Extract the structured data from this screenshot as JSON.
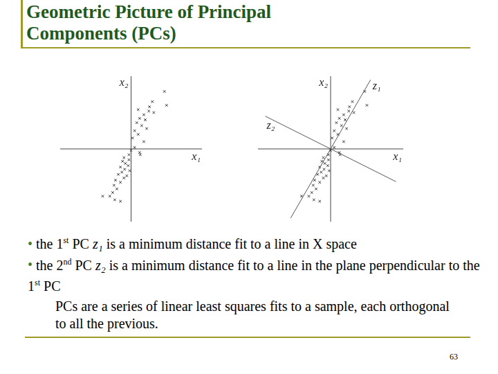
{
  "slide": {
    "title": [
      "Geometric Picture of Principal",
      "Components (PCs)"
    ],
    "bullets": [
      [
        {
          "text": "the 1"
        },
        {
          "text": "st",
          "style": "sup"
        },
        {
          "text": " PC "
        },
        {
          "text": "z₁",
          "style": "math"
        },
        {
          "text": " is a minimum distance fit to a line in  X  space"
        }
      ],
      [
        {
          "text": "the 2"
        },
        {
          "text": "nd",
          "style": "sup"
        },
        {
          "text": " PC "
        },
        {
          "text": "z₂",
          "style": "math"
        },
        {
          "text": " is a minimum distance fit to a line in the plane perpendicular to the 1"
        },
        {
          "text": "st",
          "style": "sup"
        },
        {
          "text": " PC"
        }
      ]
    ],
    "note": "PCs are a series of linear least squares fits to a sample, each orthogonal to all the previous.",
    "page": 63
  },
  "chart_data": [
    {
      "type": "scatter",
      "xlabel": "x₁",
      "ylabel": "x₂",
      "x": [
        4.7,
        5.0,
        3.0,
        2.5,
        1.8,
        1.2,
        2.0,
        0.8,
        1.5,
        2.6,
        0.5,
        1.0,
        0.2,
        1.8,
        0.5,
        1.2,
        -0.3,
        -1.0,
        -1.2,
        -0.8,
        -0.4,
        -1.5,
        -0.9,
        -0.2,
        -1.3,
        -1.8,
        -0.6,
        -1.0,
        -2.2,
        -1.5,
        -2.4,
        -2.0,
        -2.6,
        -3.0,
        -4.0,
        -2.3,
        -1.5,
        3.2,
        1.0,
        2.2,
        0.0,
        -0.3,
        1.3
      ],
      "values": [
        7.9,
        6.0,
        6.5,
        5.2,
        4.7,
        4.2,
        4.0,
        3.6,
        3.2,
        5.8,
        2.5,
        2.0,
        1.5,
        1.0,
        0.2,
        -0.5,
        -0.8,
        -1.2,
        -1.7,
        -2.0,
        -2.3,
        -2.5,
        -2.8,
        -3.0,
        -3.2,
        -3.5,
        -3.7,
        -4.0,
        -4.3,
        -4.6,
        -5.0,
        -5.5,
        -6.0,
        -6.5,
        -6.5,
        -7.0,
        -7.2,
        5.0,
        5.4,
        2.8,
        -0.2,
        -1.5,
        -0.8
      ],
      "xlim": [
        -10,
        10
      ],
      "ylim": [
        -10,
        10
      ],
      "tick_labels": false,
      "grid": false,
      "marker": "x",
      "color": "#333333"
    },
    {
      "type": "scatter",
      "xlabel": "x₁",
      "ylabel": "x₂",
      "x": [
        4.7,
        5.0,
        3.0,
        2.5,
        1.8,
        1.2,
        2.0,
        0.8,
        1.5,
        2.6,
        0.5,
        1.0,
        0.2,
        1.8,
        0.5,
        1.2,
        -0.3,
        -1.0,
        -1.2,
        -0.8,
        -0.4,
        -1.5,
        -0.9,
        -0.2,
        -1.3,
        -1.8,
        -0.6,
        -1.0,
        -2.2,
        -1.5,
        -2.4,
        -2.0,
        -2.6,
        -3.0,
        -4.0,
        -2.3,
        -1.5,
        3.2,
        1.0,
        2.2,
        0.0,
        -0.3,
        1.3
      ],
      "values": [
        7.9,
        6.0,
        6.5,
        5.2,
        4.7,
        4.2,
        4.0,
        3.6,
        3.2,
        5.8,
        2.5,
        2.0,
        1.5,
        1.0,
        0.2,
        -0.5,
        -0.8,
        -1.2,
        -1.7,
        -2.0,
        -2.3,
        -2.5,
        -2.8,
        -3.0,
        -3.2,
        -3.5,
        -3.7,
        -4.0,
        -4.3,
        -4.6,
        -5.0,
        -5.5,
        -6.0,
        -6.5,
        -6.5,
        -7.0,
        -7.2,
        5.0,
        5.4,
        2.8,
        -0.2,
        -1.5,
        -0.8
      ],
      "xlim": [
        -10,
        10
      ],
      "ylim": [
        -10,
        10
      ],
      "tick_labels": false,
      "grid": false,
      "marker": "x",
      "color": "#333333",
      "lines": [
        {
          "name": "z₁",
          "x": [
            -5.5,
            5.5
          ],
          "values": [
            -9.5,
            9.5
          ],
          "line_style": "solid",
          "color": "#555555"
        },
        {
          "name": "z₂",
          "x": [
            9,
            -9
          ],
          "values": [
            -4.5,
            4.5
          ],
          "line_style": "solid",
          "color": "#555555"
        }
      ]
    }
  ]
}
